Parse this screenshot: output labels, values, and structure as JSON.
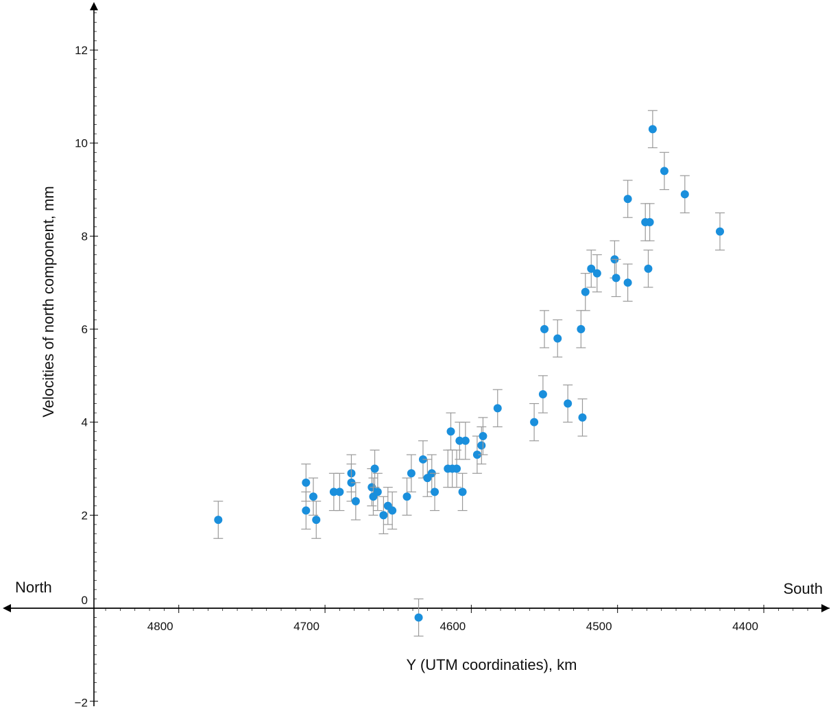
{
  "chart_data": {
    "type": "scatter",
    "xlabel": "Y (UTM coordinaties), km",
    "ylabel": "Velocities of north component, mm",
    "direction_left": "North",
    "direction_right": "South",
    "x_reversed": true,
    "xlim": [
      4858,
      4355
    ],
    "ylim": [
      -2,
      13
    ],
    "x_ticks": [
      "4800",
      "4700",
      "4600",
      "4500",
      "4400"
    ],
    "y_ticks": [
      "−2",
      "0",
      "2",
      "4",
      "6",
      "8",
      "10",
      "12"
    ],
    "x_tick_values": [
      4800,
      4700,
      4600,
      4500,
      4400
    ],
    "y_tick_values": [
      -2,
      0,
      2,
      4,
      6,
      8,
      10,
      12
    ],
    "error_bar": 0.4,
    "point_color": "#1a8fdc",
    "error_color": "#9a9a9a",
    "points": [
      {
        "x": 4773,
        "y": 1.9
      },
      {
        "x": 4713,
        "y": 2.7
      },
      {
        "x": 4713,
        "y": 2.1
      },
      {
        "x": 4708,
        "y": 2.4
      },
      {
        "x": 4706,
        "y": 1.9
      },
      {
        "x": 4694,
        "y": 2.5
      },
      {
        "x": 4690,
        "y": 2.5
      },
      {
        "x": 4682,
        "y": 2.9
      },
      {
        "x": 4682,
        "y": 2.7
      },
      {
        "x": 4679,
        "y": 2.3
      },
      {
        "x": 4668,
        "y": 2.6
      },
      {
        "x": 4667,
        "y": 2.4
      },
      {
        "x": 4666,
        "y": 3.0
      },
      {
        "x": 4664,
        "y": 2.5
      },
      {
        "x": 4660,
        "y": 2.0
      },
      {
        "x": 4657,
        "y": 2.2
      },
      {
        "x": 4654,
        "y": 2.1
      },
      {
        "x": 4644,
        "y": 2.4
      },
      {
        "x": 4641,
        "y": 2.9
      },
      {
        "x": 4636,
        "y": -0.2
      },
      {
        "x": 4633,
        "y": 3.2
      },
      {
        "x": 4630,
        "y": 2.8
      },
      {
        "x": 4627,
        "y": 2.9
      },
      {
        "x": 4625,
        "y": 2.5
      },
      {
        "x": 4616,
        "y": 3.0
      },
      {
        "x": 4614,
        "y": 3.8
      },
      {
        "x": 4613,
        "y": 3.0
      },
      {
        "x": 4610,
        "y": 3.0
      },
      {
        "x": 4608,
        "y": 3.6
      },
      {
        "x": 4606,
        "y": 2.5
      },
      {
        "x": 4604,
        "y": 3.6
      },
      {
        "x": 4596,
        "y": 3.3
      },
      {
        "x": 4593,
        "y": 3.5
      },
      {
        "x": 4592,
        "y": 3.7
      },
      {
        "x": 4582,
        "y": 4.3
      },
      {
        "x": 4557,
        "y": 4.0
      },
      {
        "x": 4551,
        "y": 4.6
      },
      {
        "x": 4550,
        "y": 6.0
      },
      {
        "x": 4541,
        "y": 5.8
      },
      {
        "x": 4534,
        "y": 4.4
      },
      {
        "x": 4525,
        "y": 6.0
      },
      {
        "x": 4524,
        "y": 4.1
      },
      {
        "x": 4522,
        "y": 6.8
      },
      {
        "x": 4518,
        "y": 7.3
      },
      {
        "x": 4514,
        "y": 7.2
      },
      {
        "x": 4502,
        "y": 7.5
      },
      {
        "x": 4501,
        "y": 7.1
      },
      {
        "x": 4493,
        "y": 7.0
      },
      {
        "x": 4493,
        "y": 8.8
      },
      {
        "x": 4481,
        "y": 8.3
      },
      {
        "x": 4479,
        "y": 7.3
      },
      {
        "x": 4478,
        "y": 8.3
      },
      {
        "x": 4476,
        "y": 10.3
      },
      {
        "x": 4468,
        "y": 9.4
      },
      {
        "x": 4454,
        "y": 8.9
      },
      {
        "x": 4430,
        "y": 8.1
      }
    ]
  }
}
